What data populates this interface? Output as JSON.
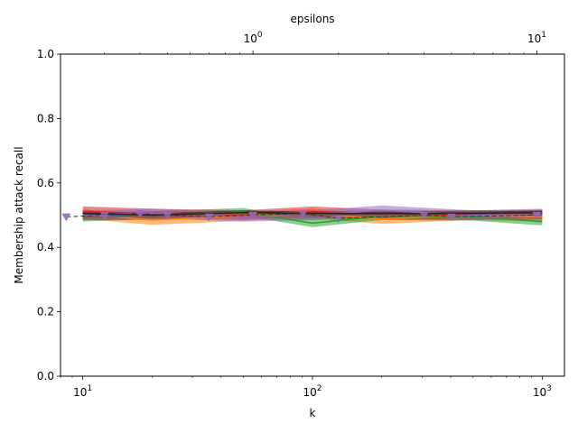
{
  "chart_data": {
    "type": "line",
    "xlabel": "k",
    "ylabel": "Membership attack recall",
    "top_xlabel": "epsilons",
    "xscale": "log",
    "xlim": [
      8,
      1250
    ],
    "ylim": [
      0.0,
      1.0
    ],
    "yticks": [
      0.0,
      0.2,
      0.4,
      0.6,
      0.8,
      1.0
    ],
    "ytick_labels": [
      "0.0",
      "0.2",
      "0.4",
      "0.6",
      "0.8",
      "1.0"
    ],
    "xticks": [
      10,
      100,
      1000
    ],
    "xtick_labels": [
      {
        "base": "10",
        "exp": "1"
      },
      {
        "base": "10",
        "exp": "2"
      },
      {
        "base": "10",
        "exp": "3"
      }
    ],
    "top_xlim": [
      0.21,
      12.5
    ],
    "top_xticks": [
      1,
      10
    ],
    "top_xtick_labels": [
      {
        "base": "10",
        "exp": "0"
      },
      {
        "base": "10",
        "exp": "1"
      }
    ],
    "x": [
      10,
      20,
      50,
      100,
      200,
      500,
      1000
    ],
    "series": [
      {
        "name": "blue",
        "color": "#1f77b4",
        "values": [
          0.498,
          0.5,
          0.502,
          0.497,
          0.503,
          0.499,
          0.501
        ],
        "band": 0.012
      },
      {
        "name": "orange",
        "color": "#ff7f0e",
        "values": [
          0.503,
          0.485,
          0.497,
          0.505,
          0.488,
          0.5,
          0.495
        ],
        "band": 0.015
      },
      {
        "name": "green",
        "color": "#2ca02c",
        "values": [
          0.492,
          0.5,
          0.51,
          0.475,
          0.497,
          0.495,
          0.48
        ],
        "band": 0.012
      },
      {
        "name": "red",
        "color": "#d62728",
        "values": [
          0.512,
          0.505,
          0.5,
          0.512,
          0.502,
          0.5,
          0.502
        ],
        "band": 0.015
      },
      {
        "name": "purple",
        "color": "#9467bd",
        "values": [
          0.5,
          0.505,
          0.495,
          0.5,
          0.515,
          0.5,
          0.505
        ],
        "band": 0.015
      },
      {
        "name": "brown",
        "color": "#8c564b",
        "values": [
          0.495,
          0.495,
          0.505,
          0.5,
          0.5,
          0.505,
          0.505
        ],
        "band": 0.01
      },
      {
        "name": "black",
        "color": "#222222",
        "values": [
          0.505,
          0.5,
          0.508,
          0.505,
          0.505,
          0.505,
          0.508
        ],
        "band": 0.006
      }
    ],
    "epsilon_series": {
      "name": "epsilons (dashed, triangle markers)",
      "color": "#9467bd",
      "x": [
        0.22,
        0.3,
        0.4,
        0.5,
        0.7,
        1.0,
        1.5,
        2.0,
        4.0,
        5.0,
        10.0
      ],
      "values": [
        0.495,
        0.5,
        0.505,
        0.5,
        0.495,
        0.5,
        0.505,
        0.49,
        0.5,
        0.495,
        0.5
      ]
    }
  }
}
